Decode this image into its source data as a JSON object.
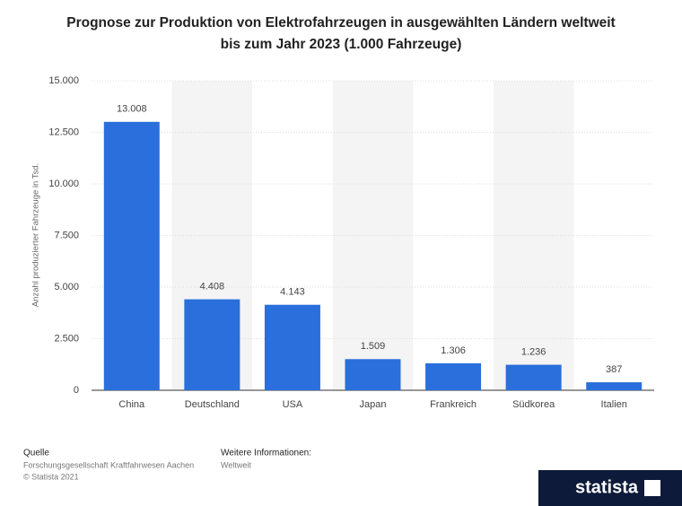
{
  "chart_data": {
    "type": "bar",
    "title": [
      "Prognose zur Produktion von Elektrofahrzeugen in ausgewählten Ländern weltweit",
      "bis zum Jahr 2023 (1.000 Fahrzeuge)"
    ],
    "y_label": "Anzahl produzierter Fahrzeuge in Tsd.",
    "categories": [
      "China",
      "Deutschland",
      "USA",
      "Japan",
      "Frankreich",
      "Südkorea",
      "Italien"
    ],
    "values": [
      13008,
      4408,
      4143,
      1509,
      1306,
      1236,
      387
    ],
    "value_labels": [
      "13.008",
      "4.408",
      "4.143",
      "1.509",
      "1.306",
      "1.236",
      "387"
    ],
    "color": "#2a6fdb",
    "ylim": [
      0,
      15000
    ],
    "yticks": [
      0,
      {
        "value": 2500,
        "label": "2.500"
      },
      {
        "value": 5000,
        "label": "5.000"
      },
      {
        "value": 7500,
        "label": "7.500"
      },
      {
        "value": 10000,
        "label": "10.000"
      },
      {
        "value": 12500,
        "label": "12.500"
      },
      {
        "value": 15000,
        "label": "15.000"
      }
    ],
    "grid": true
  },
  "footer": {
    "source_heading": "Quelle",
    "source": "Forschungsgesellschaft Kraftfahrwesen Aachen",
    "copyright": "© Statista 2021",
    "info_heading": "Weitere Informationen:",
    "info": "Weltweit",
    "logo": "statista"
  }
}
